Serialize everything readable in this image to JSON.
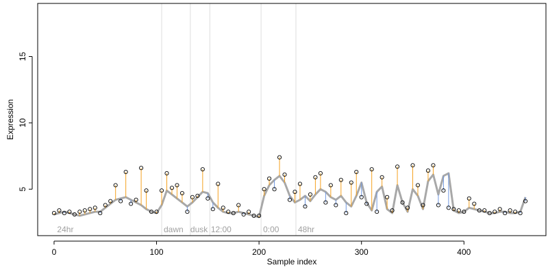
{
  "chart_data": {
    "type": "line",
    "xlabel": "Sample index",
    "ylabel": "Expression",
    "xlim": [
      -16,
      480
    ],
    "ylim": [
      1.5,
      19.0
    ],
    "x_ticks": [
      0,
      100,
      200,
      300,
      400
    ],
    "y_ticks": [
      5,
      10,
      15
    ],
    "x_tick_labels": [
      "0",
      "100",
      "200",
      "300",
      "400"
    ],
    "y_tick_labels": [
      "5",
      "10",
      "15"
    ],
    "grid": false,
    "legend": "none",
    "region_boundaries": [
      105,
      133,
      152,
      202,
      236
    ],
    "region_labels": [
      {
        "x": 3,
        "label": "24hr"
      },
      {
        "x": 107,
        "label": "dawn"
      },
      {
        "x": 133,
        "label": "dusk"
      },
      {
        "x": 153,
        "label": "12:00"
      },
      {
        "x": 204,
        "label": "0:00"
      },
      {
        "x": 238,
        "label": "48hr"
      }
    ],
    "colors": {
      "fitted_line": "#a8a8a8",
      "residual_above": "#f5a11f",
      "residual_below": "#6f97e0",
      "points": "#000000",
      "region_lines": "#dddddd",
      "region_labels": "#a0a0a0"
    },
    "series": [
      {
        "name": "",
        "x": [
          0,
          5,
          10,
          15,
          20,
          25,
          30,
          35,
          40,
          45,
          50,
          55,
          60,
          65,
          70,
          75,
          80,
          85,
          90,
          95,
          100,
          105,
          110,
          115,
          120,
          125,
          130,
          135,
          140,
          145,
          150,
          155,
          160,
          165,
          170,
          175,
          180,
          185,
          190,
          195,
          200,
          205,
          210,
          215,
          220,
          225,
          230,
          235,
          240,
          245,
          250,
          255,
          260,
          265,
          270,
          275,
          280,
          285,
          290,
          295,
          300,
          305,
          310,
          315,
          320,
          325,
          330,
          335,
          340,
          345,
          350,
          355,
          360,
          365,
          370,
          375,
          380,
          385,
          390,
          395,
          400,
          405,
          410,
          415,
          420,
          425,
          430,
          435,
          440,
          445,
          450,
          455,
          460
        ],
        "fitted": [
          3.1,
          3.2,
          3.3,
          3.2,
          3.1,
          3.0,
          3.1,
          3.2,
          3.3,
          3.3,
          3.6,
          3.9,
          4.2,
          4.3,
          4.4,
          4.2,
          4.0,
          3.8,
          3.5,
          3.3,
          3.2,
          3.8,
          4.9,
          4.6,
          4.3,
          4.0,
          3.7,
          4.0,
          4.4,
          4.8,
          4.7,
          4.0,
          3.6,
          3.3,
          3.2,
          3.2,
          3.3,
          3.2,
          3.1,
          3.0,
          2.9,
          4.5,
          5.3,
          5.7,
          6.0,
          5.5,
          4.5,
          4.0,
          4.2,
          4.5,
          4.1,
          4.6,
          5.0,
          4.8,
          4.4,
          4.2,
          4.5,
          4.0,
          3.7,
          4.5,
          5.5,
          4.0,
          3.4,
          4.8,
          5.2,
          3.5,
          3.2,
          5.3,
          4.0,
          3.3,
          5.0,
          4.5,
          3.5,
          5.6,
          6.1,
          4.6,
          6.0,
          6.2,
          3.4,
          3.2,
          3.3,
          3.6,
          3.5,
          3.4,
          3.3,
          3.2,
          3.2,
          3.3,
          3.3,
          3.2,
          3.2,
          3.3,
          4.4
        ],
        "observed": [
          3.2,
          3.4,
          3.2,
          3.3,
          3.1,
          3.3,
          3.4,
          3.5,
          3.6,
          3.2,
          3.8,
          4.1,
          5.3,
          4.1,
          6.3,
          3.9,
          4.2,
          6.6,
          4.9,
          3.3,
          3.3,
          4.9,
          6.2,
          5.1,
          5.3,
          4.7,
          3.3,
          4.4,
          4.5,
          6.5,
          4.3,
          3.5,
          5.4,
          3.6,
          3.3,
          3.2,
          3.8,
          3.1,
          3.3,
          3.0,
          3.0,
          5.0,
          5.8,
          5.0,
          7.4,
          6.1,
          4.2,
          4.8,
          5.4,
          3.7,
          4.6,
          5.9,
          6.2,
          4.0,
          5.3,
          3.8,
          5.7,
          3.2,
          5.5,
          6.3,
          4.4,
          3.9,
          6.5,
          3.3,
          5.9,
          4.4,
          3.4,
          6.7,
          4.0,
          3.6,
          6.8,
          5.3,
          3.8,
          6.4,
          6.8,
          3.8,
          4.9,
          3.6,
          3.5,
          3.4,
          3.3,
          4.3,
          3.9,
          3.4,
          3.4,
          3.2,
          3.3,
          3.5,
          3.2,
          3.4,
          3.3,
          3.2,
          4.1
        ]
      }
    ]
  }
}
